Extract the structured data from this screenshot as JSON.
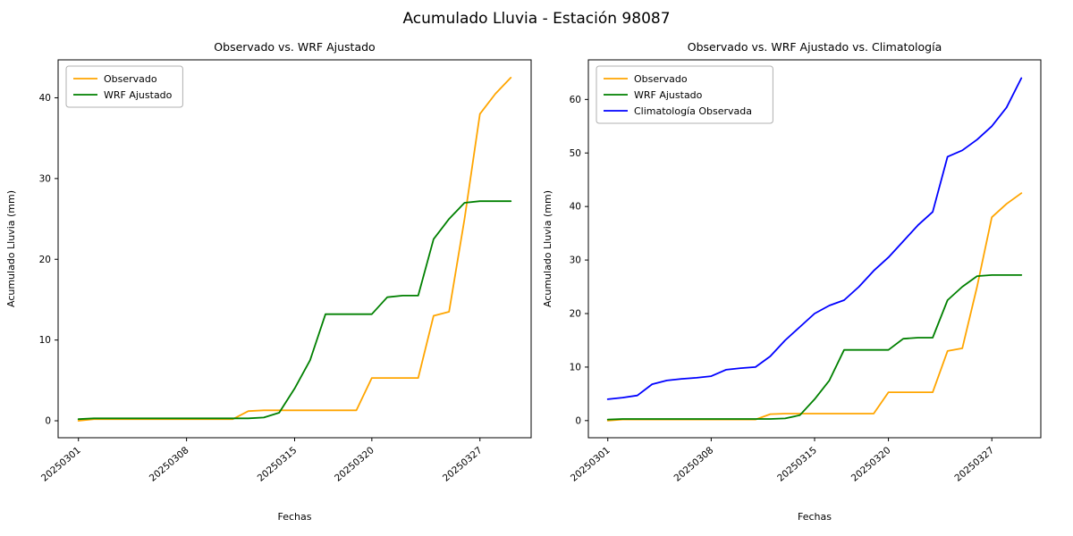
{
  "figure": {
    "title": "Acumulado Lluvia - Estación 98087"
  },
  "chart_data": [
    {
      "type": "line",
      "title": "Observado vs. WRF Ajustado",
      "xlabel": "Fechas",
      "ylabel": "Acumulado Lluvia (mm)",
      "x": [
        "20250301",
        "20250302",
        "20250303",
        "20250304",
        "20250305",
        "20250306",
        "20250307",
        "20250308",
        "20250309",
        "20250310",
        "20250311",
        "20250312",
        "20250313",
        "20250314",
        "20250315",
        "20250316",
        "20250317",
        "20250318",
        "20250319",
        "20250320",
        "20250321",
        "20250322",
        "20250323",
        "20250324",
        "20250325",
        "20250326",
        "20250327",
        "20250328",
        "20250329"
      ],
      "xtick_indices": [
        0,
        7,
        14,
        19,
        26
      ],
      "xtick_labels": [
        "20250301",
        "20250308",
        "20250315",
        "20250320",
        "20250327"
      ],
      "yticks": [
        0,
        10,
        20,
        30,
        40
      ],
      "ylim": [
        -2.1,
        44.7
      ],
      "grid": false,
      "legend_position": "upper-left",
      "series": [
        {
          "name": "Observado",
          "color": "#FFA500",
          "values": [
            0.0,
            0.2,
            0.2,
            0.2,
            0.2,
            0.2,
            0.2,
            0.2,
            0.2,
            0.2,
            0.2,
            1.2,
            1.3,
            1.3,
            1.3,
            1.3,
            1.3,
            1.3,
            1.3,
            5.3,
            5.3,
            5.3,
            5.3,
            13.0,
            13.5,
            25.0,
            38.0,
            40.5,
            42.5
          ]
        },
        {
          "name": "WRF Ajustado",
          "color": "#008000",
          "values": [
            0.2,
            0.3,
            0.3,
            0.3,
            0.3,
            0.3,
            0.3,
            0.3,
            0.3,
            0.3,
            0.3,
            0.3,
            0.4,
            1.0,
            4.0,
            7.5,
            13.2,
            13.2,
            13.2,
            13.2,
            15.3,
            15.5,
            15.5,
            22.5,
            25.0,
            27.0,
            27.2,
            27.2,
            27.2
          ]
        }
      ]
    },
    {
      "type": "line",
      "title": "Observado vs. WRF Ajustado vs. Climatología",
      "xlabel": "Fechas",
      "ylabel": "Acumulado Lluvia (mm)",
      "x": [
        "20250301",
        "20250302",
        "20250303",
        "20250304",
        "20250305",
        "20250306",
        "20250307",
        "20250308",
        "20250309",
        "20250310",
        "20250311",
        "20250312",
        "20250313",
        "20250314",
        "20250315",
        "20250316",
        "20250317",
        "20250318",
        "20250319",
        "20250320",
        "20250321",
        "20250322",
        "20250323",
        "20250324",
        "20250325",
        "20250326",
        "20250327",
        "20250328",
        "20250329"
      ],
      "xtick_indices": [
        0,
        7,
        14,
        19,
        26
      ],
      "xtick_labels": [
        "20250301",
        "20250308",
        "20250315",
        "20250320",
        "20250327"
      ],
      "yticks": [
        0,
        10,
        20,
        30,
        40,
        50,
        60
      ],
      "ylim": [
        -3.2,
        67.4
      ],
      "grid": false,
      "legend_position": "upper-left",
      "series": [
        {
          "name": "Observado",
          "color": "#FFA500",
          "values": [
            0.0,
            0.2,
            0.2,
            0.2,
            0.2,
            0.2,
            0.2,
            0.2,
            0.2,
            0.2,
            0.2,
            1.2,
            1.3,
            1.3,
            1.3,
            1.3,
            1.3,
            1.3,
            1.3,
            5.3,
            5.3,
            5.3,
            5.3,
            13.0,
            13.5,
            25.0,
            38.0,
            40.5,
            42.5
          ]
        },
        {
          "name": "WRF Ajustado",
          "color": "#008000",
          "values": [
            0.2,
            0.3,
            0.3,
            0.3,
            0.3,
            0.3,
            0.3,
            0.3,
            0.3,
            0.3,
            0.3,
            0.3,
            0.4,
            1.0,
            4.0,
            7.5,
            13.2,
            13.2,
            13.2,
            13.2,
            15.3,
            15.5,
            15.5,
            22.5,
            25.0,
            27.0,
            27.2,
            27.2,
            27.2
          ]
        },
        {
          "name": "Climatología Observada",
          "color": "#0000FF",
          "values": [
            4.0,
            4.3,
            4.7,
            6.8,
            7.5,
            7.8,
            8.0,
            8.3,
            9.5,
            9.8,
            10.0,
            12.0,
            15.0,
            17.5,
            20.0,
            21.5,
            22.5,
            25.0,
            28.0,
            30.5,
            33.5,
            36.5,
            39.0,
            49.3,
            50.5,
            52.5,
            55.0,
            58.5,
            64.0
          ]
        }
      ]
    }
  ]
}
